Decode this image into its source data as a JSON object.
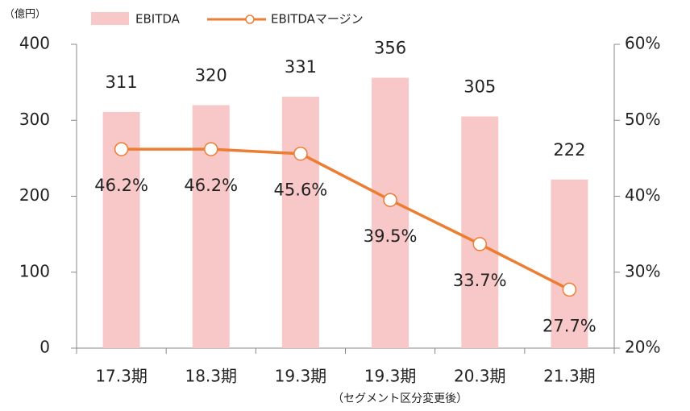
{
  "chart_data": {
    "type": "bar",
    "unit_label": "（億円）",
    "categories": [
      "17.3期",
      "18.3期",
      "19.3期",
      "19.3期",
      "20.3期",
      "21.3期"
    ],
    "annotation": "（セグメント区分変更後）",
    "series": [
      {
        "name": "EBITDA",
        "type": "bar",
        "color": "#f8c8c8",
        "values": [
          311,
          320,
          331,
          356,
          305,
          222
        ]
      },
      {
        "name": "EBITDAマージン",
        "type": "line",
        "axis": "y2",
        "color": "#ed7d31",
        "values": [
          46.2,
          46.2,
          45.6,
          39.5,
          33.7,
          27.7
        ],
        "value_labels": [
          "46.2%",
          "46.2%",
          "45.6%",
          "39.5%",
          "33.7%",
          "27.7%"
        ]
      }
    ],
    "ylim": [
      0,
      400
    ],
    "yticks": [
      0,
      100,
      200,
      300,
      400
    ],
    "y2lim": [
      20,
      60
    ],
    "y2ticks": [
      {
        "value": 20,
        "label": "20%"
      },
      {
        "value": 30,
        "label": "30%"
      },
      {
        "value": 40,
        "label": "40%"
      },
      {
        "value": 50,
        "label": "50%"
      },
      {
        "value": 60,
        "label": "60%"
      }
    ]
  }
}
